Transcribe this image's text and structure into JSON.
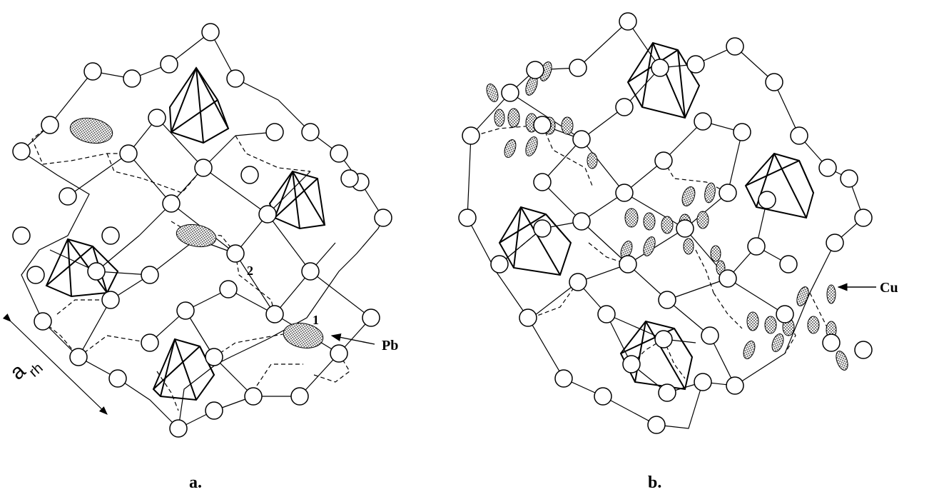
{
  "figure": {
    "panels": [
      {
        "id": "a",
        "caption": "a.",
        "labels": {
          "site1": "1",
          "site2": "2",
          "pb": "Pb",
          "axis_letter": "a",
          "axis_subscript": "rh"
        }
      },
      {
        "id": "b",
        "caption": "b.",
        "labels": {
          "cu": "Cu"
        }
      }
    ]
  }
}
